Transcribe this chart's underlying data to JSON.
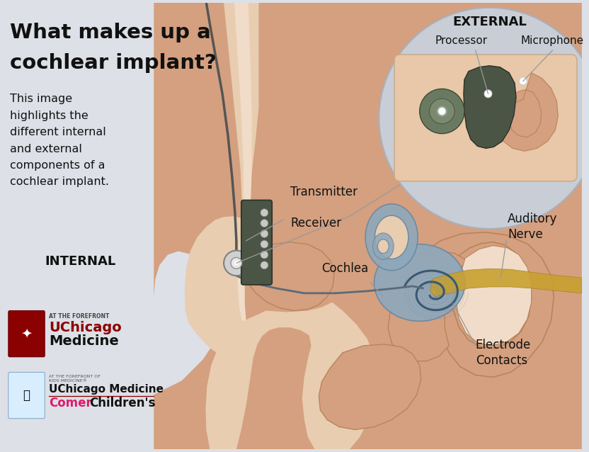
{
  "bg_color": "#dde0e6",
  "title_line1": "What makes up a",
  "title_line2": "cochlear implant?",
  "title_color": "#111111",
  "title_fontsize": 21,
  "subtitle": "This image\nhighlights the\ndifferent internal\nand external\ncomponents of a\ncochlear implant.",
  "subtitle_color": "#333333",
  "subtitle_fontsize": 11.5,
  "label_internal": "INTERNAL",
  "label_external": "EXTERNAL",
  "label_fontsize": 13,
  "skin_color": "#d4a080",
  "skin_light": "#e8cdb0",
  "skin_lighter": "#f0dcc8",
  "skin_medium": "#b8845a",
  "skin_dark": "#a07050",
  "implant_dark": "#4a5545",
  "cochlea_color": "#8fa8bc",
  "cochlea_dark": "#6888a0",
  "nerve_color": "#c8a030",
  "bg_circle": "#c8cdd6",
  "uchicago_red": "#8b0000",
  "comer_pink": "#e0186c",
  "wire_color": "#555555",
  "line_color": "#999999"
}
